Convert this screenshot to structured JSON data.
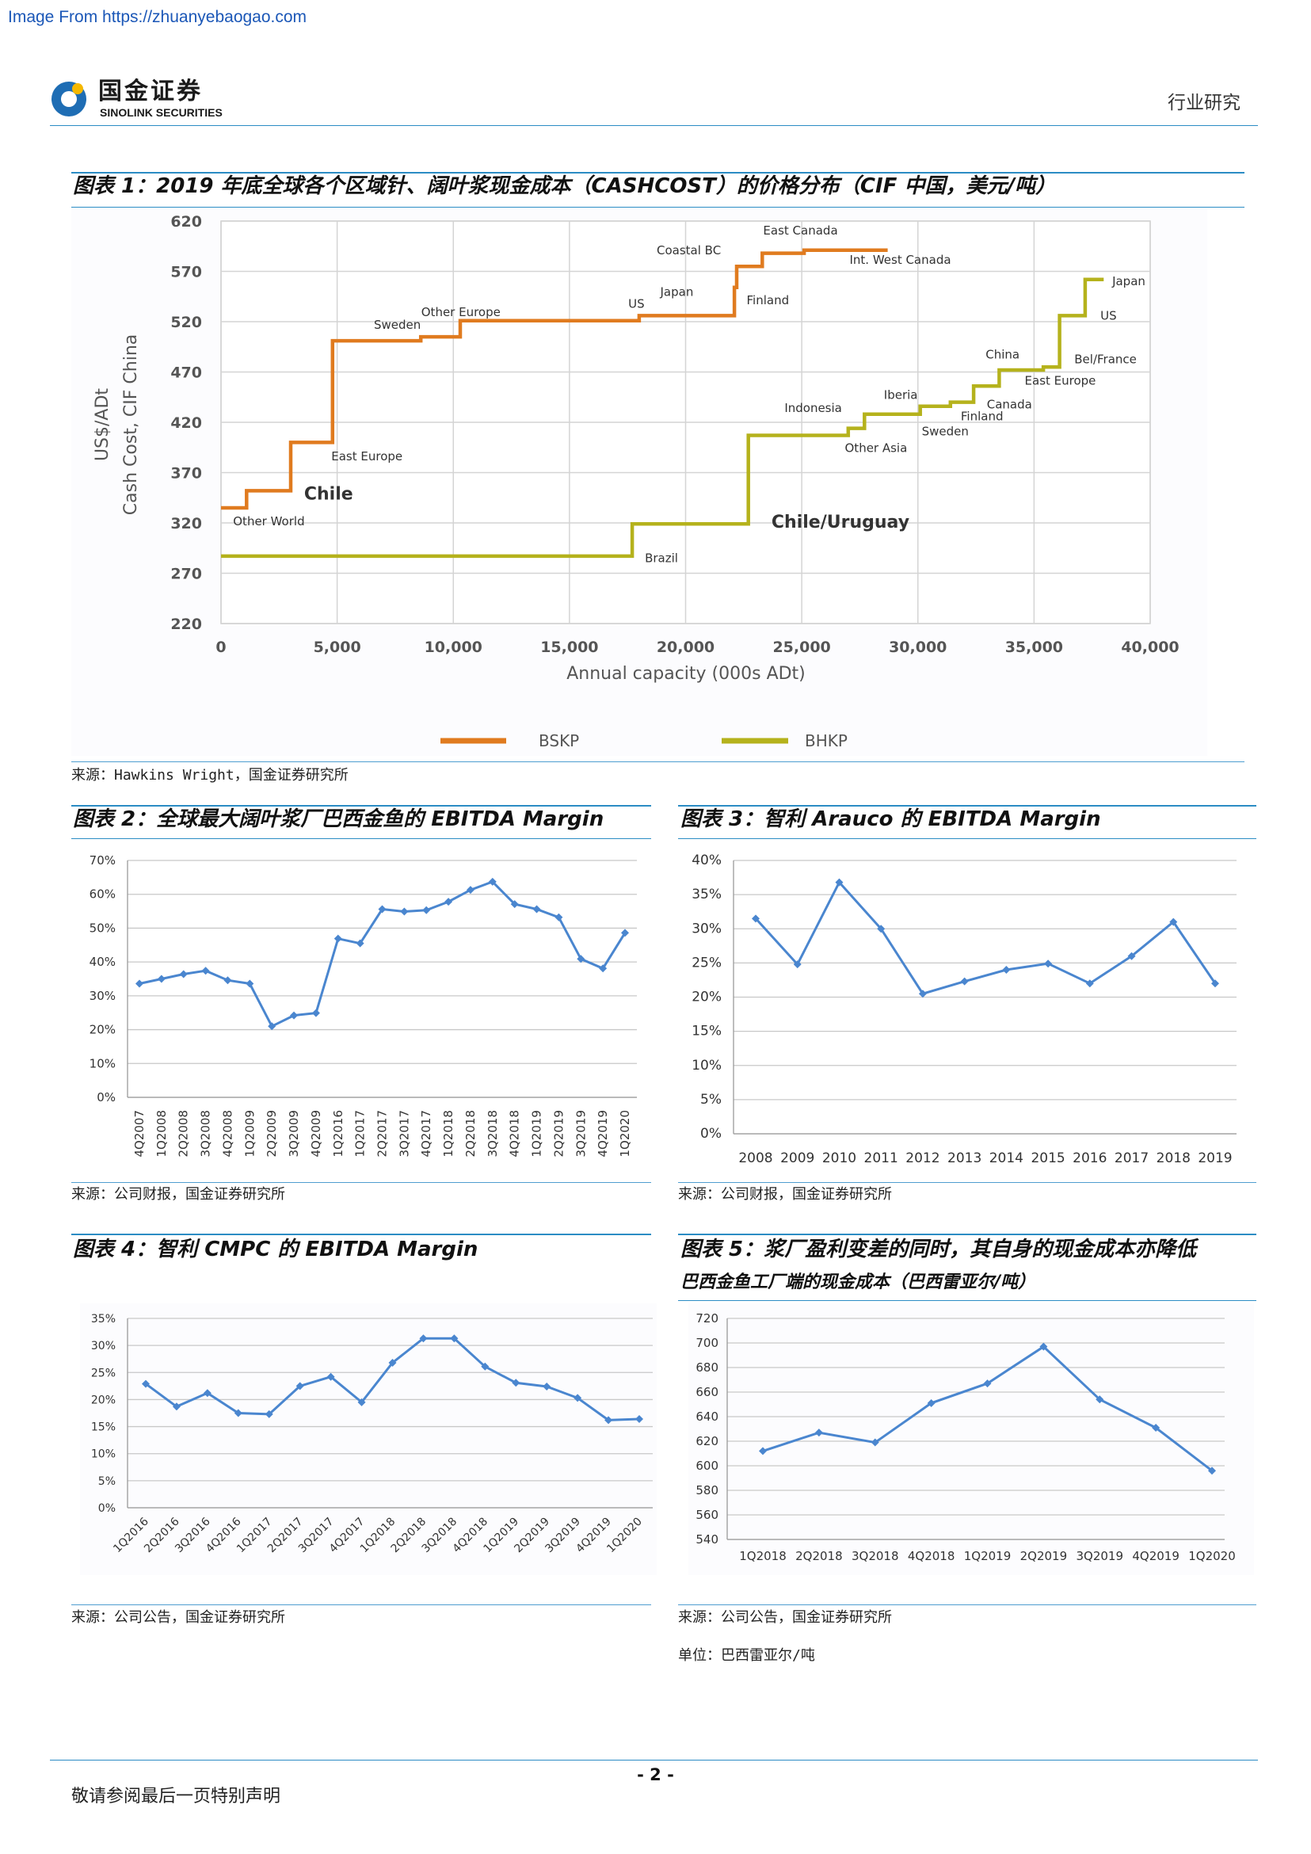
{
  "watermark": "Image From https://zhuanyebaogao.com",
  "header": {
    "logo_cn": "国金证券",
    "logo_en": "SINOLINK SECURITIES",
    "section": "行业研究"
  },
  "figures": [
    {
      "title": "图表 1：2019 年底全球各个区域针、阔叶浆现金成本（CASHCOST）的价格分布（CIF 中国，美元/吨）",
      "source": "来源：Hawkins Wright，国金证券研究所"
    },
    {
      "title": "图表 2：全球最大阔叶浆厂巴西金鱼的 EBITDA Margin",
      "source": "来源：公司财报，国金证券研究所"
    },
    {
      "title": "图表 3：智利 Arauco 的 EBITDA Margin",
      "source": "来源：公司财报，国金证券研究所"
    },
    {
      "title": "图表 4：智利 CMPC 的 EBITDA Margin",
      "source": "来源：公司公告，国金证券研究所"
    },
    {
      "title": "图表 5：浆厂盈利变差的同时，其自身的现金成本亦降低",
      "subtitle": "巴西金鱼工厂端的现金成本（巴西雷亚尔/吨）",
      "source": "来源：公司公告，国金证券研究所",
      "unit": "单位：巴西雷亚尔/吨"
    }
  ],
  "footer": {
    "page": "- 2 -",
    "notice": "敬请参阅最后一页特别声明"
  },
  "colors": {
    "rule": "#2b8cc4",
    "line": "#4a86cf",
    "grid": "#d4d4d4"
  },
  "chart_data": [
    {
      "type": "line",
      "style": "step",
      "xlabel": "Annual capacity (000s ADt)",
      "ylabel": "US$/ADt",
      "ylabel2": "Cash Cost, CIF China",
      "xlim": [
        0,
        40000
      ],
      "ylim": [
        220,
        620
      ],
      "x_ticks": [
        "0",
        "5,000",
        "10,000",
        "15,000",
        "20,000",
        "25,000",
        "30,000",
        "35,000",
        "40,000"
      ],
      "y_ticks": [
        "220",
        "270",
        "320",
        "370",
        "420",
        "470",
        "520",
        "570",
        "620"
      ],
      "grid": true,
      "legend": "bottom",
      "series": [
        {
          "name": "BSKP",
          "color": "#e07b1f",
          "steps": [
            {
              "x_from": 0,
              "x_to": 1100,
              "y": 335
            },
            {
              "x_from": 1100,
              "x_to": 3000,
              "y": 352
            },
            {
              "x_from": 3000,
              "x_to": 4800,
              "y": 400
            },
            {
              "x_from": 4800,
              "x_to": 8600,
              "y": 501
            },
            {
              "x_from": 8600,
              "x_to": 10300,
              "y": 505
            },
            {
              "x_from": 10300,
              "x_to": 18000,
              "y": 521
            },
            {
              "x_from": 18000,
              "x_to": 22100,
              "y": 526
            },
            {
              "x_from": 22100,
              "x_to": 22200,
              "y": 554
            },
            {
              "x_from": 22200,
              "x_to": 23300,
              "y": 575
            },
            {
              "x_from": 23300,
              "x_to": 25100,
              "y": 588
            },
            {
              "x_from": 25100,
              "x_to": 28700,
              "y": 591
            }
          ]
        },
        {
          "name": "BHKP",
          "color": "#b5b21c",
          "steps": [
            {
              "x_from": 0,
              "x_to": 17700,
              "y": 287
            },
            {
              "x_from": 17700,
              "x_to": 22700,
              "y": 319
            },
            {
              "x_from": 22700,
              "x_to": 27000,
              "y": 407
            },
            {
              "x_from": 27000,
              "x_to": 27700,
              "y": 414
            },
            {
              "x_from": 27700,
              "x_to": 30100,
              "y": 428
            },
            {
              "x_from": 30100,
              "x_to": 31400,
              "y": 436
            },
            {
              "x_from": 31400,
              "x_to": 32400,
              "y": 440
            },
            {
              "x_from": 32400,
              "x_to": 33500,
              "y": 456
            },
            {
              "x_from": 33500,
              "x_to": 35400,
              "y": 472
            },
            {
              "x_from": 35400,
              "x_to": 36100,
              "y": 475
            },
            {
              "x_from": 36100,
              "x_to": 37200,
              "y": 526
            },
            {
              "x_from": 37200,
              "x_to": 38000,
              "y": 562
            }
          ]
        }
      ],
      "annotations": [
        {
          "text": "Other World",
          "series": "BSKP"
        },
        {
          "text": "Chile",
          "series": "BSKP",
          "highlight": true,
          "color": "#e8202a"
        },
        {
          "text": "East Europe",
          "series": "BSKP"
        },
        {
          "text": "Sweden",
          "series": "BSKP"
        },
        {
          "text": "Other Europe",
          "series": "BSKP"
        },
        {
          "text": "US",
          "series": "BSKP"
        },
        {
          "text": "Japan",
          "series": "BSKP"
        },
        {
          "text": "Coastal BC",
          "series": "BSKP"
        },
        {
          "text": "Finland",
          "series": "BSKP"
        },
        {
          "text": "East Canada",
          "series": "BSKP"
        },
        {
          "text": "Int. West Canada",
          "series": "BSKP"
        },
        {
          "text": "Brazil",
          "series": "BHKP"
        },
        {
          "text": "Chile/Uruguay",
          "series": "BHKP",
          "highlight": true,
          "color": "#e8202a"
        },
        {
          "text": "Indonesia",
          "series": "BHKP"
        },
        {
          "text": "Other Asia",
          "series": "BHKP"
        },
        {
          "text": "Iberia",
          "series": "BHKP"
        },
        {
          "text": "Sweden",
          "series": "BHKP"
        },
        {
          "text": "Finland",
          "series": "BHKP"
        },
        {
          "text": "Canada",
          "series": "BHKP"
        },
        {
          "text": "China",
          "series": "BHKP"
        },
        {
          "text": "East Europe",
          "series": "BHKP"
        },
        {
          "text": "Bel/France",
          "series": "BHKP"
        },
        {
          "text": "US",
          "series": "BHKP"
        },
        {
          "text": "Japan",
          "series": "BHKP"
        }
      ]
    },
    {
      "type": "line",
      "categories": [
        "4Q2007",
        "1Q2008",
        "2Q2008",
        "3Q2008",
        "4Q2008",
        "1Q2009",
        "2Q2009",
        "3Q2009",
        "4Q2009",
        "1Q2016",
        "1Q2017",
        "2Q2017",
        "3Q2017",
        "4Q2017",
        "1Q2018",
        "2Q2018",
        "3Q2018",
        "4Q2018",
        "1Q2019",
        "2Q2019",
        "3Q2019",
        "4Q2019",
        "1Q2020"
      ],
      "values": [
        33.6,
        35.0,
        36.4,
        37.4,
        34.6,
        33.6,
        21.0,
        24.2,
        24.9,
        46.9,
        45.5,
        55.6,
        54.9,
        55.3,
        57.8,
        61.3,
        63.7,
        57.1,
        55.6,
        53.2,
        40.9,
        38.1,
        48.6
      ],
      "ylim": [
        0,
        70
      ],
      "y_ticks": [
        "0%",
        "10%",
        "20%",
        "30%",
        "40%",
        "50%",
        "60%",
        "70%"
      ],
      "unit": "%",
      "grid": true
    },
    {
      "type": "line",
      "categories": [
        "2008",
        "2009",
        "2010",
        "2011",
        "2012",
        "2013",
        "2014",
        "2015",
        "2016",
        "2017",
        "2018",
        "2019"
      ],
      "values": [
        31.5,
        24.8,
        36.8,
        30.0,
        20.5,
        22.3,
        24.0,
        24.9,
        22.0,
        26.0,
        31.0,
        22.0
      ],
      "ylim": [
        0,
        40
      ],
      "y_ticks": [
        "0%",
        "5%",
        "10%",
        "15%",
        "20%",
        "25%",
        "30%",
        "35%",
        "40%"
      ],
      "unit": "%",
      "grid": true
    },
    {
      "type": "line",
      "categories": [
        "1Q2016",
        "2Q2016",
        "3Q2016",
        "4Q2016",
        "1Q2017",
        "2Q2017",
        "3Q2017",
        "4Q2017",
        "1Q2018",
        "2Q2018",
        "3Q2018",
        "4Q2018",
        "1Q2019",
        "2Q2019",
        "3Q2019",
        "4Q2019",
        "1Q2020"
      ],
      "values": [
        22.9,
        18.7,
        21.2,
        17.5,
        17.3,
        22.5,
        24.2,
        19.5,
        26.8,
        31.3,
        31.3,
        26.1,
        23.1,
        22.4,
        20.3,
        16.2,
        16.4
      ],
      "ylim": [
        0,
        35
      ],
      "y_ticks": [
        "0%",
        "5%",
        "10%",
        "15%",
        "20%",
        "25%",
        "30%",
        "35%"
      ],
      "unit": "%",
      "grid": true
    },
    {
      "type": "line",
      "categories": [
        "1Q2018",
        "2Q2018",
        "3Q2018",
        "4Q2018",
        "1Q2019",
        "2Q2019",
        "3Q2019",
        "4Q2019",
        "1Q2020"
      ],
      "values": [
        612,
        627,
        619,
        651,
        667,
        697,
        654,
        631,
        596
      ],
      "ylim": [
        540,
        720
      ],
      "y_ticks": [
        "540",
        "560",
        "580",
        "600",
        "620",
        "640",
        "660",
        "680",
        "700",
        "720"
      ],
      "grid": true
    }
  ]
}
